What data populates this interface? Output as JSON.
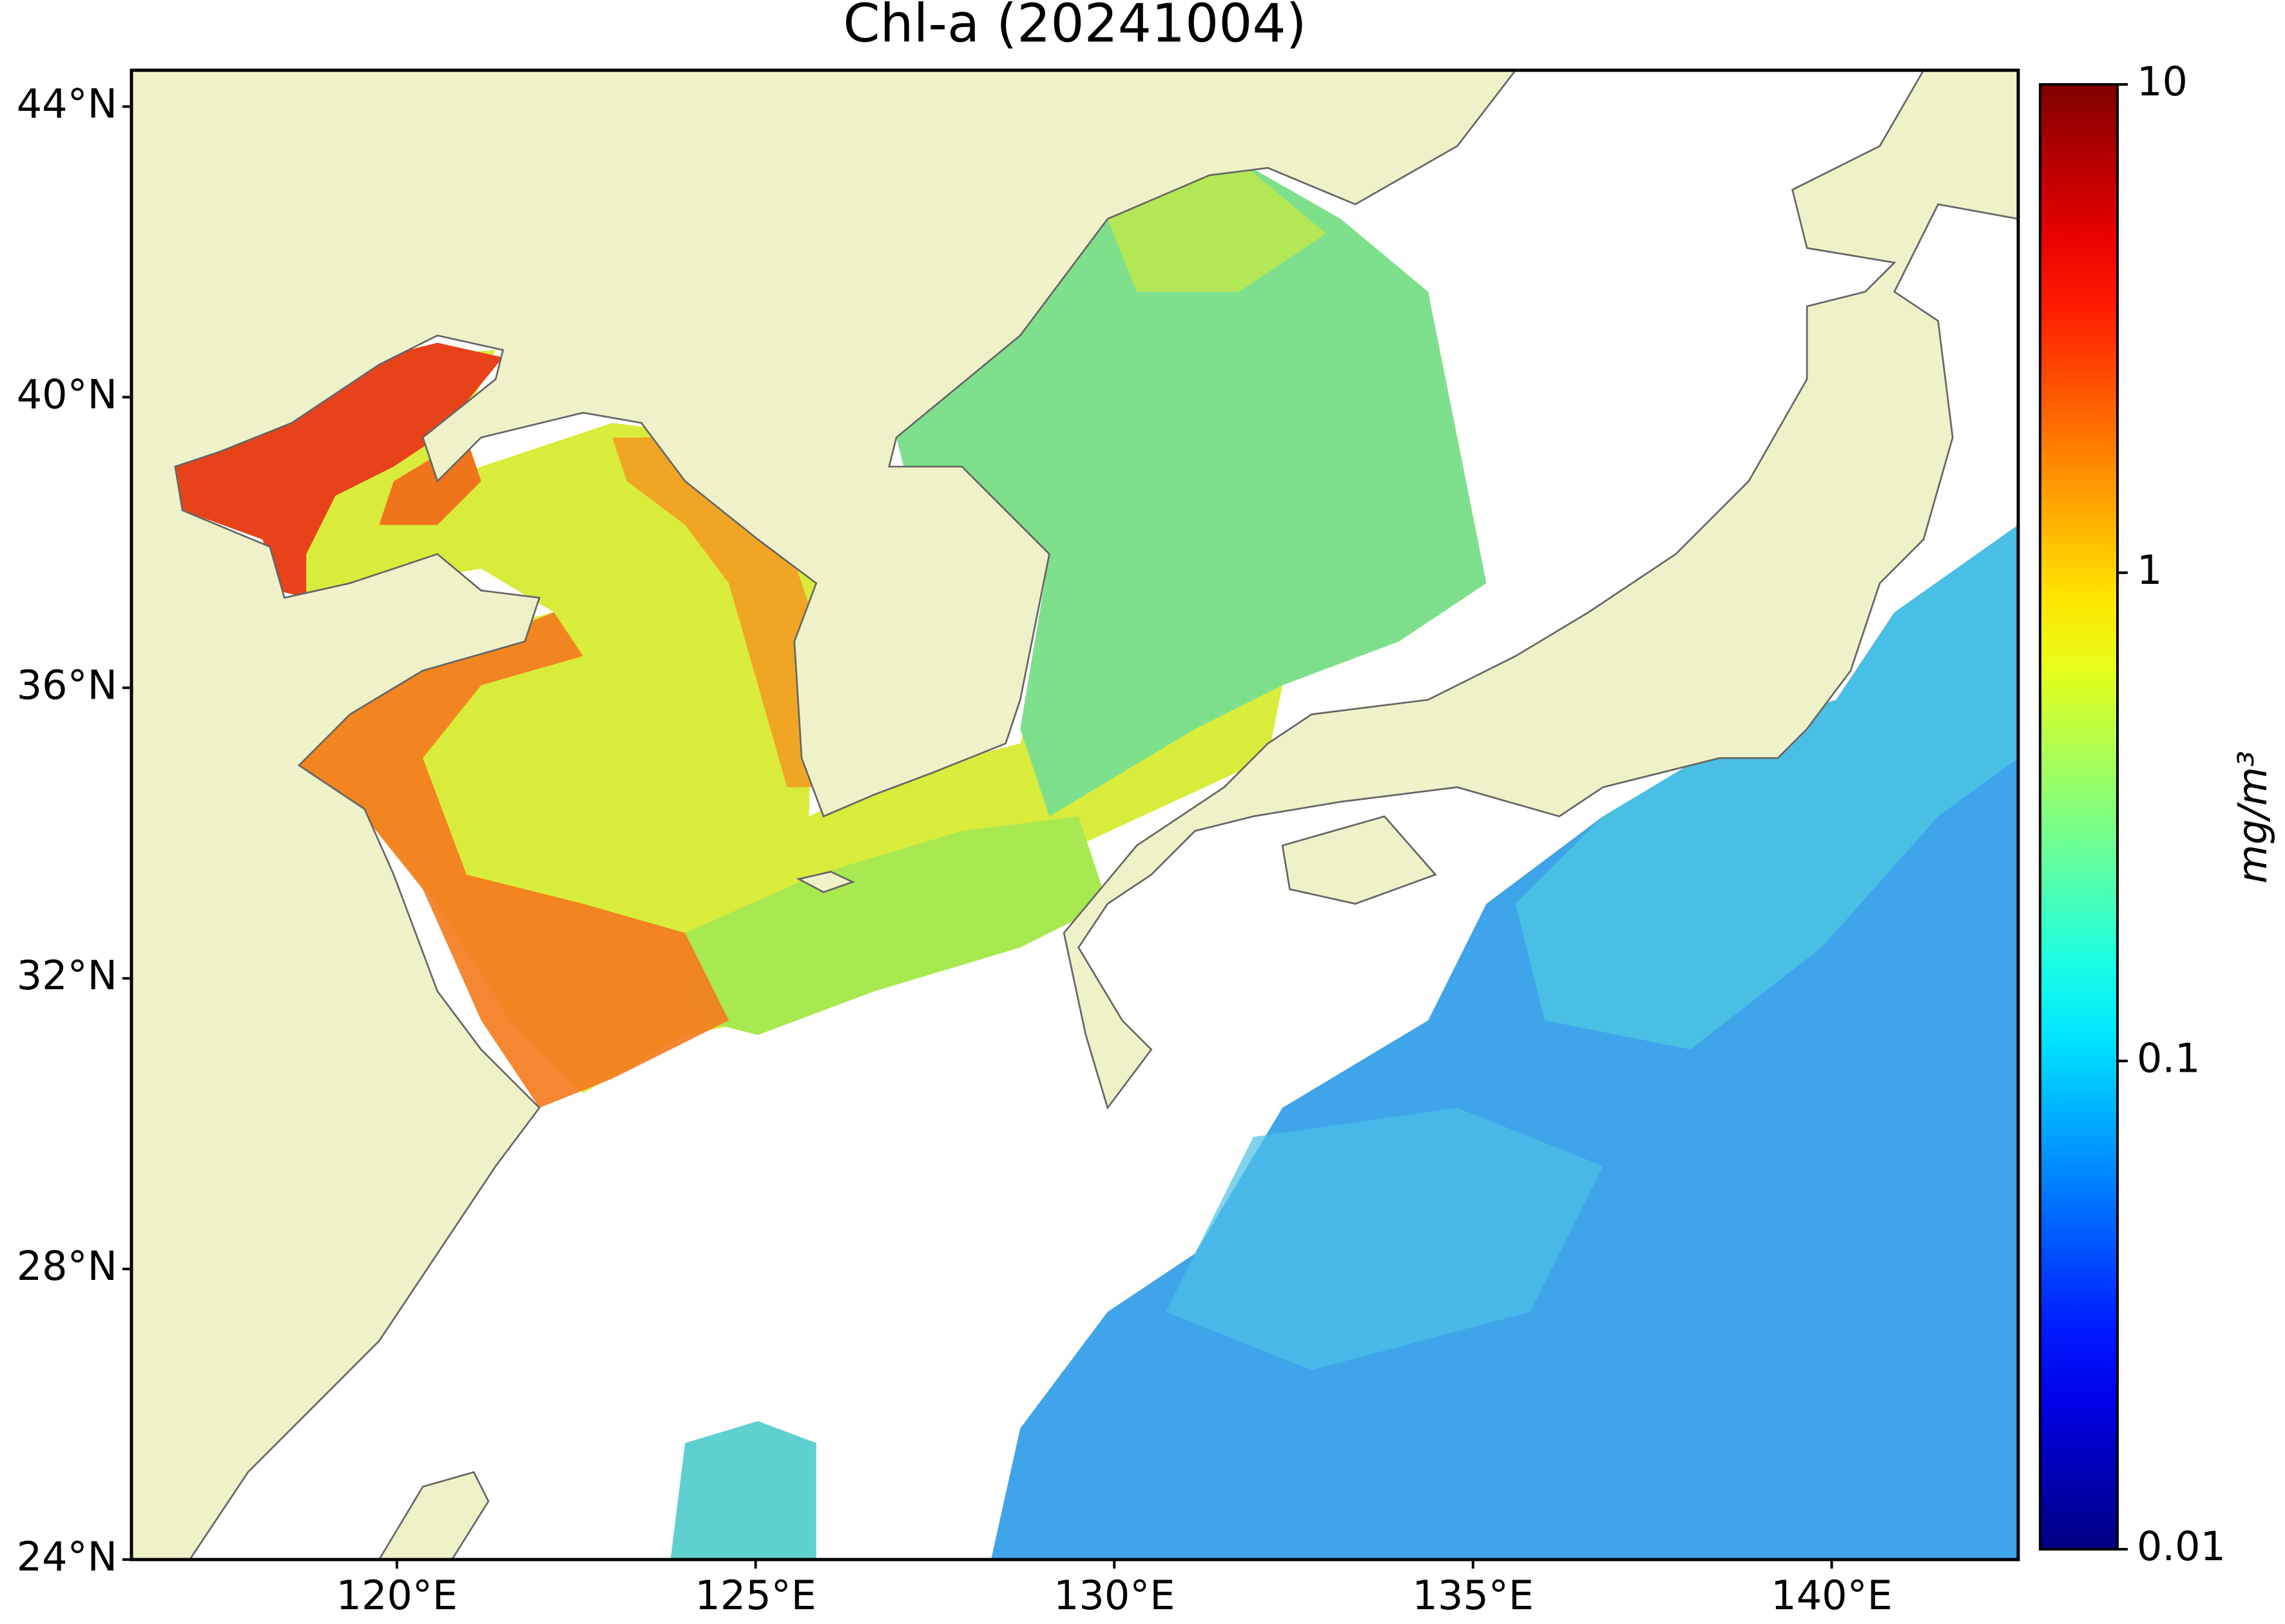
{
  "chart_data": {
    "type": "map",
    "title": "Chl-a (20241004)",
    "xlim": [
      116.3,
      142.6
    ],
    "ylim": [
      24,
      44.5
    ],
    "xticks": [
      {
        "value": 120,
        "label": "120°E"
      },
      {
        "value": 125,
        "label": "125°E"
      },
      {
        "value": 130,
        "label": "130°E"
      },
      {
        "value": 135,
        "label": "135°E"
      },
      {
        "value": 140,
        "label": "140°E"
      }
    ],
    "yticks": [
      {
        "value": 24,
        "label": "24°N"
      },
      {
        "value": 28,
        "label": "28°N"
      },
      {
        "value": 32,
        "label": "32°N"
      },
      {
        "value": 36,
        "label": "36°N"
      },
      {
        "value": 40,
        "label": "40°N"
      },
      {
        "value": 44,
        "label": "44°N"
      }
    ],
    "colorbar": {
      "colormap": "jet",
      "log_scale": true,
      "lim": [
        0.01,
        10
      ],
      "ticks": [
        0.01,
        0.1,
        1,
        10
      ],
      "label": "mg/m³"
    }
  }
}
